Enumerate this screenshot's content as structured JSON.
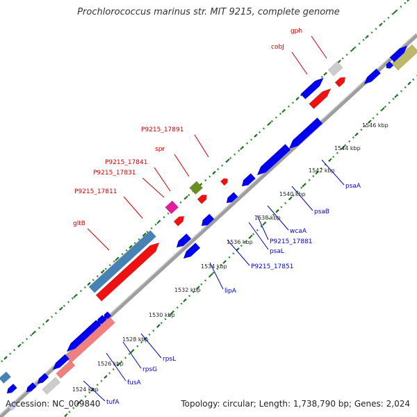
{
  "title": "Prochlorococcus marinus str. MIT 9215, complete genome",
  "accession": "Accession: NC_009840",
  "summary": "Topology: circular; Length: 1,738,790 bp; Genes: 2,024",
  "colors": {
    "backbone": "#9e9e9e",
    "dots": "#2e8b2e",
    "forward_label": "#cc0000",
    "reverse_label": "#0000cc"
  },
  "tick_labels": [
    "1524 kbp",
    "1526 kbp",
    "1528 kbp",
    "1530 kbp",
    "1532 kbp",
    "1534 kbp",
    "1536 kbp",
    "1538 kbp",
    "1540 kbp",
    "1542 kbp",
    "1544 kbp",
    "1546 kbp"
  ],
  "forward_gene_labels": [
    "gph",
    "cobJ",
    "P9215_17891",
    "spr",
    "P9215_17841",
    "P9215_17831",
    "P9215_17811",
    "gltB"
  ],
  "reverse_gene_labels": [
    "psaA",
    "psaB",
    "wcaA",
    "P9215_17881",
    "psaL",
    "P9215_17851",
    "lipA",
    "rpsL",
    "rpsG",
    "fusA",
    "tufA"
  ]
}
